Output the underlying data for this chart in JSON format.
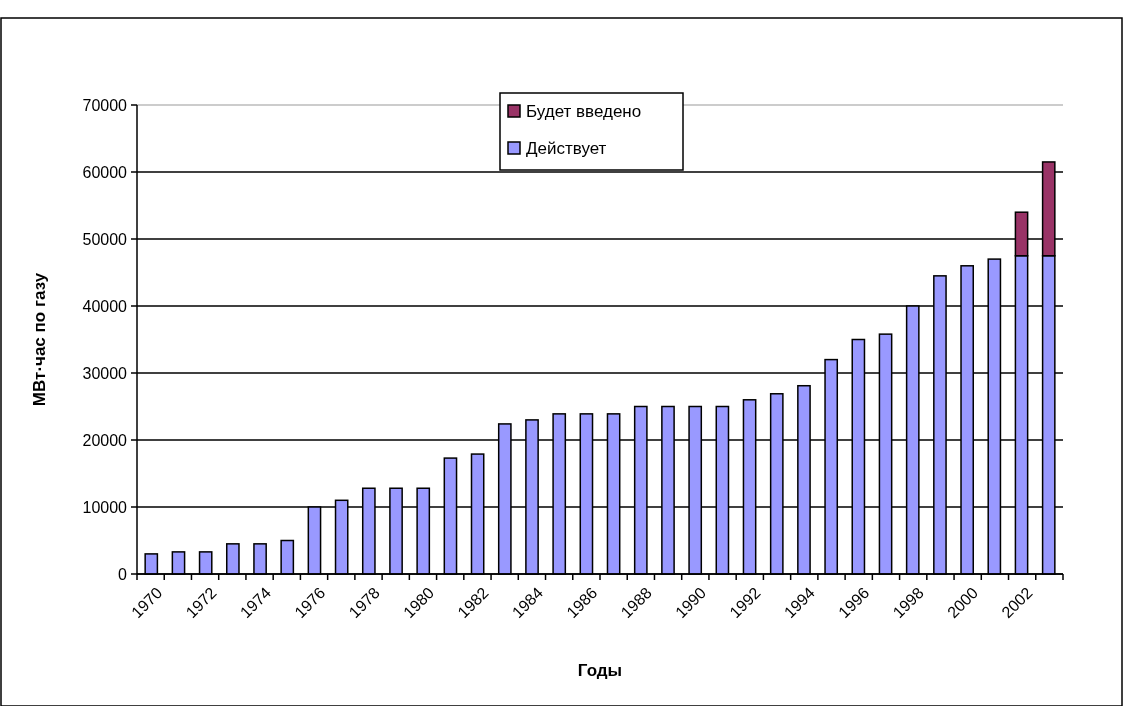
{
  "chart_data": {
    "type": "bar",
    "stacked": true,
    "xlabel": "Годы",
    "ylabel": "МВт·час по газу",
    "categories": [
      "1970",
      null,
      "1972",
      null,
      "1974",
      null,
      "1976",
      null,
      "1978",
      null,
      "1980",
      null,
      "1982",
      null,
      "1984",
      null,
      "1986",
      null,
      "1988",
      null,
      "1990",
      null,
      "1992",
      null,
      "1994",
      null,
      "1996",
      null,
      "1998",
      null,
      "2000",
      null,
      "2002",
      null
    ],
    "series": [
      {
        "name": "Действует",
        "color": "#9999ff",
        "values": [
          3000,
          3300,
          3300,
          4500,
          4500,
          5000,
          10000,
          11000,
          12800,
          12800,
          12800,
          17300,
          17900,
          22400,
          23000,
          23900,
          23900,
          23900,
          25000,
          25000,
          25000,
          25000,
          26000,
          26900,
          28100,
          32000,
          35000,
          35800,
          40000,
          44500,
          46000,
          47000,
          47500,
          47500
        ]
      },
      {
        "name": "Будет введено",
        "color": "#993366",
        "values": [
          null,
          null,
          null,
          null,
          null,
          null,
          null,
          null,
          null,
          null,
          null,
          null,
          null,
          null,
          null,
          null,
          null,
          null,
          null,
          null,
          null,
          null,
          null,
          null,
          null,
          null,
          null,
          null,
          null,
          null,
          null,
          null,
          6500,
          14000
        ]
      }
    ],
    "ylim": [
      0,
      70000
    ],
    "yticks": [
      0,
      10000,
      20000,
      30000,
      40000,
      50000,
      60000,
      70000
    ],
    "grid": "y",
    "legend": "top"
  }
}
